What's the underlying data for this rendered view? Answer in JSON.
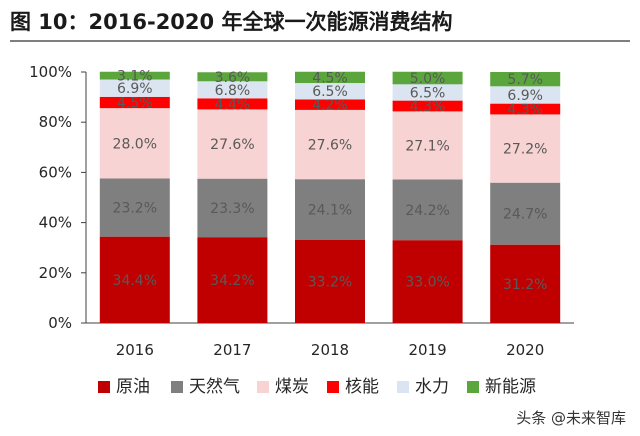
{
  "header": {
    "title": "图 10：2016-2020 年全球一次能源消费结构"
  },
  "watermark": "头条 @未来智库",
  "chart_data": {
    "type": "bar",
    "stacked": true,
    "categories": [
      "2016",
      "2017",
      "2018",
      "2019",
      "2020"
    ],
    "ylim": [
      0,
      100
    ],
    "y_ticks": [
      "0%",
      "20%",
      "40%",
      "60%",
      "80%",
      "100%"
    ],
    "legend_position": "bottom",
    "series": [
      {
        "name": "原油",
        "color": "#c00000",
        "values": [
          34.4,
          34.2,
          33.2,
          33.0,
          31.2
        ],
        "labels": [
          "34.4%",
          "34.2%",
          "33.2%",
          "33.0%",
          "31.2%"
        ]
      },
      {
        "name": "天然气",
        "color": "#7f7f7f",
        "values": [
          23.2,
          23.3,
          24.1,
          24.2,
          24.7
        ],
        "labels": [
          "23.2%",
          "23.3%",
          "24.1%",
          "24.2%",
          "24.7%"
        ]
      },
      {
        "name": "煤炭",
        "color": "#f8d3d3",
        "values": [
          28.0,
          27.6,
          27.6,
          27.1,
          27.2
        ],
        "labels": [
          "28.0%",
          "27.6%",
          "27.6%",
          "27.1%",
          "27.2%"
        ]
      },
      {
        "name": "核能",
        "color": "#ff0000",
        "values": [
          4.5,
          4.4,
          4.2,
          4.3,
          4.3
        ],
        "labels": [
          "4.5%",
          "4.4%",
          "4.2%",
          "4.3%",
          "4.3%"
        ]
      },
      {
        "name": "水力",
        "color": "#dbe4f1",
        "values": [
          6.9,
          6.8,
          6.5,
          6.5,
          6.9
        ],
        "labels": [
          "6.9%",
          "6.8%",
          "6.5%",
          "6.5%",
          "6.9%"
        ]
      },
      {
        "name": "新能源",
        "color": "#5aa63c",
        "values": [
          3.1,
          3.6,
          4.5,
          5.0,
          5.7
        ],
        "labels": [
          "3.1%",
          "3.6%",
          "4.5%",
          "5.0%",
          "5.7%"
        ]
      }
    ]
  }
}
